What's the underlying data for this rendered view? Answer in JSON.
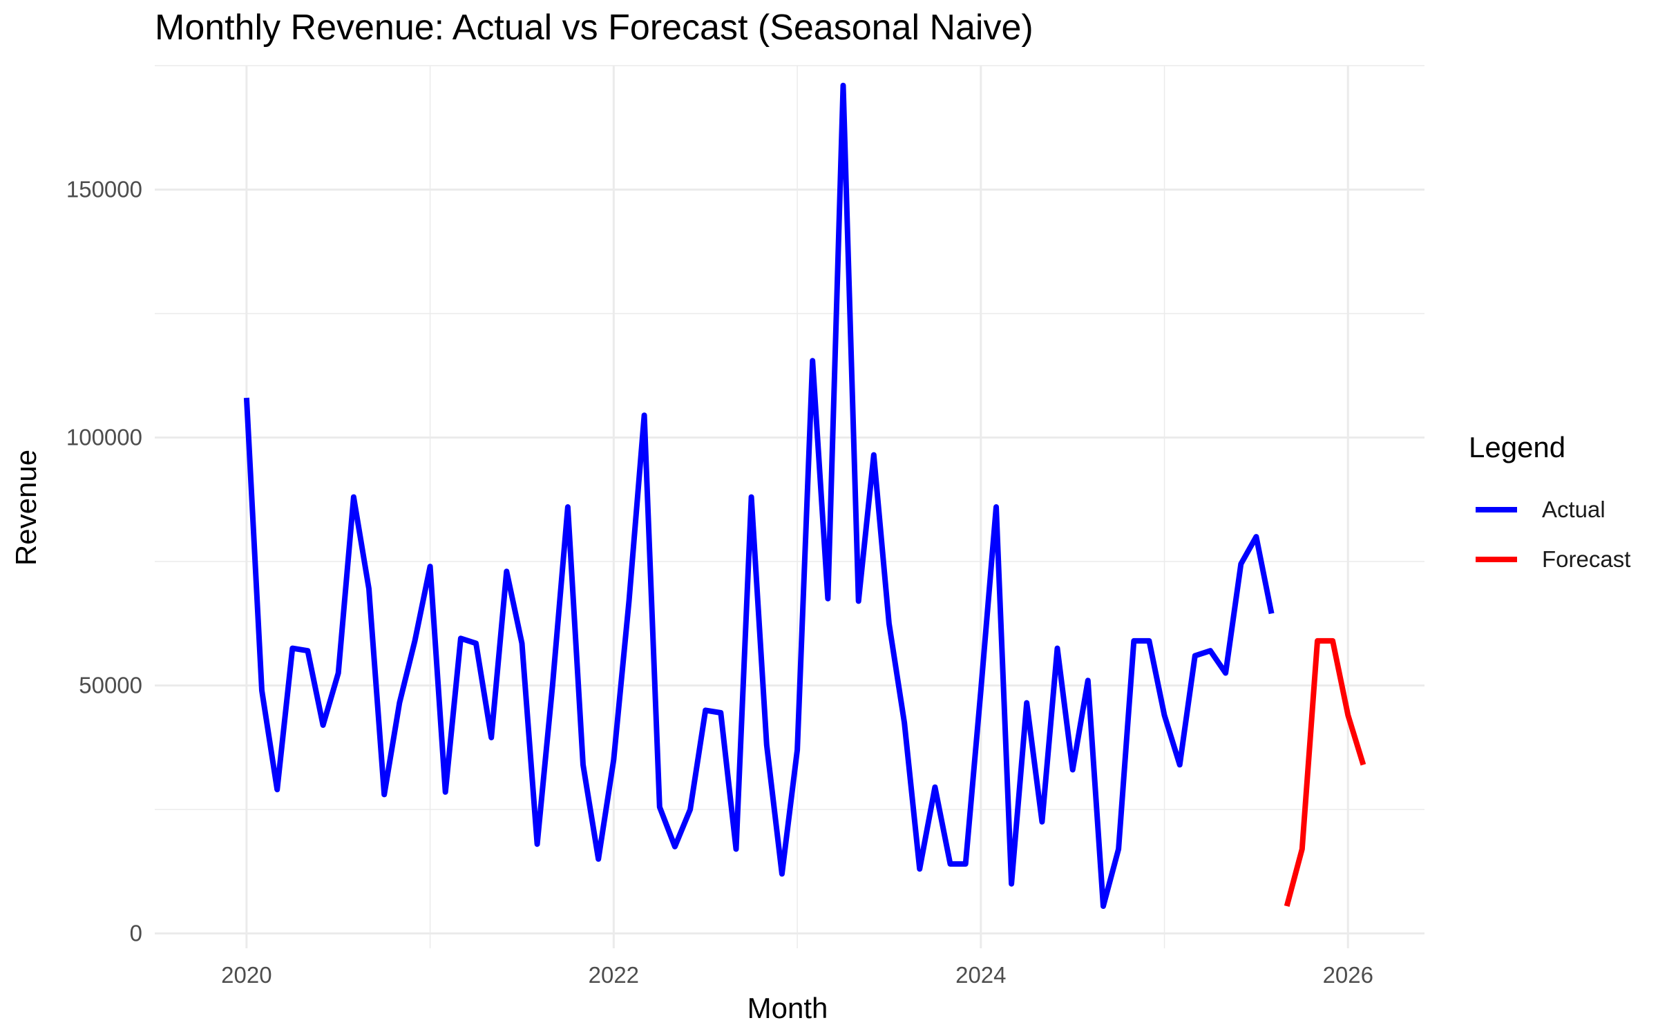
{
  "chart_data": {
    "type": "line",
    "title": "Monthly Revenue: Actual vs Forecast (Seasonal Naive)",
    "xlabel": "Month",
    "ylabel": "Revenue",
    "x_ticks": [
      "2020",
      "2022",
      "2024",
      "2026"
    ],
    "y_ticks": [
      "0",
      "50000",
      "100000",
      "150000"
    ],
    "xlim": [
      "2019-07",
      "2026-06"
    ],
    "ylim": [
      -3000,
      175000
    ],
    "grid": true,
    "legend": {
      "title": "Legend",
      "position": "right"
    },
    "series": [
      {
        "name": "Actual",
        "color": "#0000ff",
        "points": [
          [
            "2020-01",
            108000
          ],
          [
            "2020-02",
            49000
          ],
          [
            "2020-03",
            29000
          ],
          [
            "2020-04",
            57500
          ],
          [
            "2020-05",
            57000
          ],
          [
            "2020-06",
            42000
          ],
          [
            "2020-07",
            52500
          ],
          [
            "2020-08",
            88000
          ],
          [
            "2020-09",
            69500
          ],
          [
            "2020-10",
            28000
          ],
          [
            "2020-11",
            46500
          ],
          [
            "2020-12",
            59000
          ],
          [
            "2021-01",
            74000
          ],
          [
            "2021-02",
            28500
          ],
          [
            "2021-03",
            59500
          ],
          [
            "2021-04",
            58500
          ],
          [
            "2021-05",
            39500
          ],
          [
            "2021-06",
            73000
          ],
          [
            "2021-07",
            58500
          ],
          [
            "2021-08",
            18000
          ],
          [
            "2021-09",
            50000
          ],
          [
            "2021-10",
            86000
          ],
          [
            "2021-11",
            34000
          ],
          [
            "2021-12",
            15000
          ],
          [
            "2022-01",
            35000
          ],
          [
            "2022-02",
            67000
          ],
          [
            "2022-03",
            104500
          ],
          [
            "2022-04",
            25500
          ],
          [
            "2022-05",
            17500
          ],
          [
            "2022-06",
            25000
          ],
          [
            "2022-07",
            45000
          ],
          [
            "2022-08",
            44500
          ],
          [
            "2022-09",
            17000
          ],
          [
            "2022-10",
            88000
          ],
          [
            "2022-11",
            38000
          ],
          [
            "2022-12",
            12000
          ],
          [
            "2023-01",
            37000
          ],
          [
            "2023-02",
            115500
          ],
          [
            "2023-03",
            67500
          ],
          [
            "2023-04",
            171000
          ],
          [
            "2023-05",
            67000
          ],
          [
            "2023-06",
            96500
          ],
          [
            "2023-07",
            62500
          ],
          [
            "2023-08",
            42500
          ],
          [
            "2023-09",
            13000
          ],
          [
            "2023-10",
            29500
          ],
          [
            "2023-11",
            14000
          ],
          [
            "2023-12",
            14000
          ],
          [
            "2024-01",
            49000
          ],
          [
            "2024-02",
            86000
          ],
          [
            "2024-03",
            10000
          ],
          [
            "2024-04",
            46500
          ],
          [
            "2024-05",
            22500
          ],
          [
            "2024-06",
            57500
          ],
          [
            "2024-07",
            33000
          ],
          [
            "2024-08",
            51000
          ],
          [
            "2024-09",
            5500
          ],
          [
            "2024-10",
            17000
          ],
          [
            "2024-11",
            59000
          ],
          [
            "2024-12",
            59000
          ],
          [
            "2025-01",
            44000
          ],
          [
            "2025-02",
            34000
          ],
          [
            "2025-03",
            56000
          ],
          [
            "2025-04",
            57000
          ],
          [
            "2025-05",
            52500
          ],
          [
            "2025-06",
            74500
          ],
          [
            "2025-07",
            80000
          ],
          [
            "2025-08",
            64500
          ]
        ]
      },
      {
        "name": "Forecast",
        "color": "#ff0000",
        "points": [
          [
            "2025-09",
            5500
          ],
          [
            "2025-10",
            17000
          ],
          [
            "2025-11",
            59000
          ],
          [
            "2025-12",
            59000
          ],
          [
            "2026-01",
            44000
          ],
          [
            "2026-02",
            34000
          ]
        ]
      }
    ]
  }
}
